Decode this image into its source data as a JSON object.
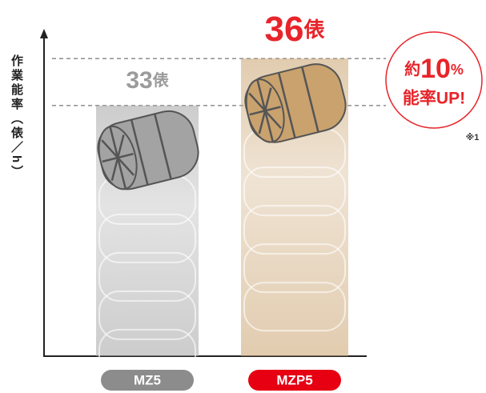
{
  "chart_data": {
    "type": "bar",
    "y_label": "作業能率（俵／h）",
    "categories": [
      "MZ5",
      "MZP5"
    ],
    "values": [
      33,
      36
    ],
    "unit": "俵",
    "colors": [
      "#a3a3a3",
      "#c9a26e"
    ],
    "label_colors": [
      "#9b9b9b",
      "#e8242a"
    ],
    "category_colors": [
      "#8c8c8c",
      "#e60012"
    ],
    "ylim": [
      17,
      38
    ],
    "reference_lines": true,
    "annotation": {
      "prefix": "約",
      "value": 10,
      "unit": "%",
      "text": "能率UP!"
    },
    "footnote": "※1"
  }
}
